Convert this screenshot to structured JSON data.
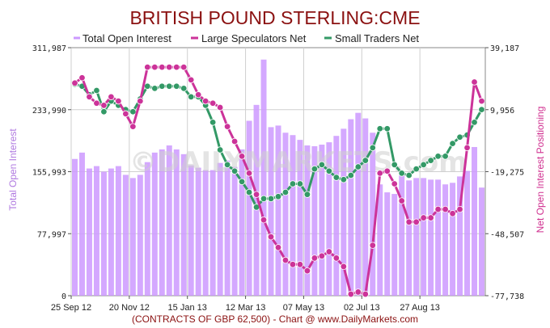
{
  "chart_data": {
    "type": "bar",
    "title": "BRITISH POUND STERLING:CME",
    "left_axis_label": "Total Open Interest",
    "right_axis_label": "Net Open Interest Positioning",
    "footer": "(CONTRACTS OF GBP 62,500)  - Chart @ www.DailyMarkets.com",
    "watermark": "©DAILYMARKETS.com",
    "legend": [
      {
        "label": "Total Open Interest",
        "color": "#cc99ff"
      },
      {
        "label": "Large Speculators Net",
        "color": "#cc3399"
      },
      {
        "label": "Small Traders Net",
        "color": "#339966"
      }
    ],
    "left_ticks": [
      "311,987",
      "233,990",
      "155,993",
      "77,997",
      "0"
    ],
    "right_ticks": [
      "39,187",
      "9,956",
      "-19,275",
      "-48,507",
      "-77,738"
    ],
    "x_tick_labels": [
      "25 Sep 12",
      "20 Nov 12",
      "15 Jan 13",
      "12 Mar 13",
      "07 May 13",
      "02 Jul 13",
      "27 Aug 13"
    ],
    "left_ylim": [
      0,
      311987
    ],
    "right_ylim": [
      -77738,
      39187
    ],
    "series": [
      {
        "name": "Total Open Interest",
        "axis": "left",
        "values": [
          172000,
          180000,
          160000,
          163000,
          156000,
          160000,
          163000,
          152000,
          148000,
          152000,
          168000,
          180000,
          184000,
          189000,
          184000,
          178000,
          164000,
          161000,
          158000,
          158000,
          167000,
          170000,
          162000,
          184000,
          220000,
          240000,
          297000,
          212000,
          214000,
          205000,
          202000,
          196000,
          189000,
          188000,
          190000,
          193000,
          201000,
          210000,
          222000,
          230000,
          223000,
          205000,
          140000,
          130000,
          128000,
          152000,
          145000,
          148000,
          148000,
          146000,
          146000,
          140000,
          142000,
          150000,
          157000,
          187000,
          136000
        ]
      },
      {
        "name": "Large Speculators Net",
        "axis": "right",
        "values": [
          22500,
          25000,
          16000,
          13000,
          12000,
          16000,
          14000,
          8000,
          2000,
          14000,
          30000,
          30000,
          30000,
          30000,
          30000,
          30000,
          24000,
          17000,
          14000,
          13000,
          11000,
          2000,
          -5000,
          -12000,
          -20000,
          -30000,
          -42000,
          -50000,
          -55000,
          -61000,
          -63000,
          -63000,
          -66000,
          -60000,
          -59000,
          -57000,
          -60000,
          -64000,
          -77000,
          -76000,
          -77000,
          -54000,
          -20000,
          -19000,
          -25000,
          -33000,
          -43000,
          -43000,
          -41000,
          -41000,
          -37000,
          -37000,
          -39000,
          -37000,
          -8000,
          23000,
          14000
        ]
      },
      {
        "name": "Small Traders Net",
        "axis": "right",
        "values": [
          22000,
          21000,
          17000,
          19000,
          9000,
          14000,
          12000,
          10000,
          9000,
          15000,
          21000,
          20000,
          21000,
          21000,
          21000,
          20000,
          16000,
          16000,
          12000,
          4000,
          -9000,
          -16000,
          -19000,
          -24000,
          -29000,
          -36000,
          -32000,
          -32000,
          -31000,
          -29000,
          -25000,
          -25000,
          -30000,
          -18000,
          -16000,
          -19000,
          -22000,
          -23000,
          -21000,
          -17000,
          -14000,
          -8000,
          1000,
          1000,
          -16000,
          -20000,
          -21000,
          -18000,
          -16000,
          -14000,
          -12000,
          -12000,
          -6000,
          -3000,
          -2000,
          4000,
          10000
        ]
      }
    ]
  }
}
